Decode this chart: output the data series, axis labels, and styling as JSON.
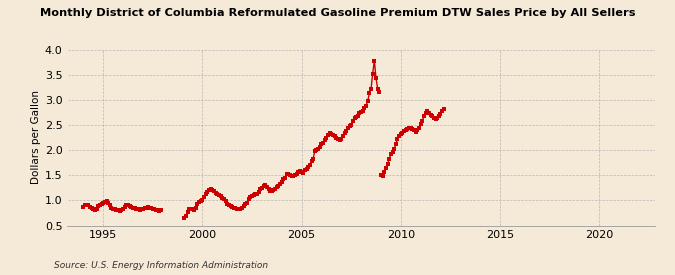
{
  "title": "Monthly District of Columbia Reformulated Gasoline Premium DTW Sales Price by All Sellers",
  "ylabel": "Dollars per Gallon",
  "source": "Source: U.S. Energy Information Administration",
  "background_color": "#f5ead8",
  "plot_background_color": "#f5ead8",
  "marker_color": "#cc0000",
  "line_color": "#cc0000",
  "marker_size": 2.5,
  "line_width": 1.0,
  "xlim_start": 1993.2,
  "xlim_end": 2022.8,
  "ylim_bottom": 0.5,
  "ylim_top": 4.0,
  "yticks": [
    0.5,
    1.0,
    1.5,
    2.0,
    2.5,
    3.0,
    3.5,
    4.0
  ],
  "xticks": [
    1995,
    2000,
    2005,
    2010,
    2015,
    2020
  ],
  "segments": [
    [
      [
        1994.0,
        0.87
      ],
      [
        1994.083,
        0.9
      ],
      [
        1994.167,
        0.91
      ],
      [
        1994.25,
        0.91
      ],
      [
        1994.333,
        0.87
      ],
      [
        1994.417,
        0.85
      ],
      [
        1994.5,
        0.82
      ],
      [
        1994.583,
        0.8
      ],
      [
        1994.667,
        0.83
      ],
      [
        1994.75,
        0.88
      ],
      [
        1994.833,
        0.9
      ],
      [
        1994.917,
        0.92
      ],
      [
        1995.0,
        0.94
      ],
      [
        1995.083,
        0.97
      ],
      [
        1995.167,
        0.98
      ],
      [
        1995.25,
        0.95
      ],
      [
        1995.333,
        0.9
      ],
      [
        1995.417,
        0.85
      ],
      [
        1995.5,
        0.82
      ],
      [
        1995.583,
        0.82
      ],
      [
        1995.667,
        0.8
      ],
      [
        1995.75,
        0.8
      ],
      [
        1995.833,
        0.78
      ],
      [
        1995.917,
        0.8
      ],
      [
        1996.0,
        0.83
      ],
      [
        1996.083,
        0.87
      ],
      [
        1996.167,
        0.9
      ],
      [
        1996.25,
        0.9
      ],
      [
        1996.333,
        0.88
      ],
      [
        1996.417,
        0.87
      ],
      [
        1996.5,
        0.85
      ],
      [
        1996.583,
        0.84
      ],
      [
        1996.667,
        0.83
      ],
      [
        1996.75,
        0.82
      ],
      [
        1996.833,
        0.81
      ],
      [
        1996.917,
        0.82
      ],
      [
        1997.0,
        0.83
      ],
      [
        1997.083,
        0.85
      ],
      [
        1997.167,
        0.85
      ],
      [
        1997.25,
        0.86
      ],
      [
        1997.333,
        0.85
      ],
      [
        1997.417,
        0.84
      ],
      [
        1997.5,
        0.83
      ],
      [
        1997.583,
        0.82
      ],
      [
        1997.667,
        0.81
      ],
      [
        1997.75,
        0.8
      ],
      [
        1997.833,
        0.79
      ],
      [
        1997.917,
        0.8
      ]
    ],
    [
      [
        1999.083,
        0.65
      ],
      [
        1999.167,
        0.68
      ],
      [
        1999.25,
        0.77
      ],
      [
        1999.333,
        0.82
      ],
      [
        1999.417,
        0.83
      ],
      [
        1999.5,
        0.83
      ],
      [
        1999.583,
        0.81
      ],
      [
        1999.667,
        0.85
      ],
      [
        1999.75,
        0.92
      ],
      [
        1999.833,
        0.96
      ],
      [
        1999.917,
        0.99
      ],
      [
        2000.0,
        1.01
      ],
      [
        2000.083,
        1.07
      ],
      [
        2000.167,
        1.12
      ],
      [
        2000.25,
        1.16
      ],
      [
        2000.333,
        1.2
      ],
      [
        2000.417,
        1.23
      ],
      [
        2000.5,
        1.2
      ],
      [
        2000.583,
        1.18
      ],
      [
        2000.667,
        1.15
      ],
      [
        2000.75,
        1.12
      ],
      [
        2000.833,
        1.1
      ],
      [
        2000.917,
        1.08
      ],
      [
        2001.0,
        1.05
      ],
      [
        2001.083,
        1.02
      ],
      [
        2001.167,
        0.98
      ],
      [
        2001.25,
        0.92
      ],
      [
        2001.333,
        0.9
      ],
      [
        2001.417,
        0.88
      ],
      [
        2001.5,
        0.86
      ],
      [
        2001.583,
        0.85
      ],
      [
        2001.667,
        0.84
      ],
      [
        2001.75,
        0.83
      ],
      [
        2001.833,
        0.82
      ],
      [
        2001.917,
        0.82
      ],
      [
        2002.0,
        0.85
      ],
      [
        2002.083,
        0.88
      ],
      [
        2002.167,
        0.92
      ],
      [
        2002.25,
        0.95
      ],
      [
        2002.333,
        1.02
      ],
      [
        2002.417,
        1.06
      ],
      [
        2002.5,
        1.09
      ],
      [
        2002.583,
        1.11
      ],
      [
        2002.667,
        1.13
      ],
      [
        2002.75,
        1.13
      ],
      [
        2002.833,
        1.16
      ],
      [
        2002.917,
        1.22
      ],
      [
        2003.0,
        1.25
      ],
      [
        2003.083,
        1.28
      ],
      [
        2003.167,
        1.3
      ],
      [
        2003.25,
        1.26
      ],
      [
        2003.333,
        1.22
      ],
      [
        2003.417,
        1.18
      ],
      [
        2003.5,
        1.18
      ],
      [
        2003.583,
        1.2
      ],
      [
        2003.667,
        1.23
      ],
      [
        2003.75,
        1.26
      ],
      [
        2003.833,
        1.29
      ],
      [
        2003.917,
        1.32
      ],
      [
        2004.0,
        1.37
      ],
      [
        2004.083,
        1.42
      ],
      [
        2004.167,
        1.44
      ],
      [
        2004.25,
        1.52
      ],
      [
        2004.333,
        1.53
      ],
      [
        2004.417,
        1.51
      ],
      [
        2004.5,
        1.49
      ],
      [
        2004.583,
        1.49
      ],
      [
        2004.667,
        1.51
      ],
      [
        2004.75,
        1.53
      ],
      [
        2004.833,
        1.56
      ],
      [
        2004.917,
        1.59
      ],
      [
        2005.0,
        1.57
      ],
      [
        2005.083,
        1.54
      ],
      [
        2005.167,
        1.6
      ],
      [
        2005.25,
        1.62
      ],
      [
        2005.333,
        1.67
      ],
      [
        2005.417,
        1.7
      ],
      [
        2005.5,
        1.78
      ],
      [
        2005.583,
        1.83
      ],
      [
        2005.667,
        1.98
      ],
      [
        2005.75,
        2.0
      ],
      [
        2005.833,
        2.02
      ],
      [
        2005.917,
        2.07
      ],
      [
        2006.0,
        2.12
      ],
      [
        2006.083,
        2.15
      ],
      [
        2006.167,
        2.2
      ],
      [
        2006.25,
        2.24
      ],
      [
        2006.333,
        2.3
      ],
      [
        2006.417,
        2.34
      ],
      [
        2006.5,
        2.32
      ],
      [
        2006.583,
        2.3
      ],
      [
        2006.667,
        2.27
      ],
      [
        2006.75,
        2.24
      ],
      [
        2006.833,
        2.22
      ],
      [
        2006.917,
        2.2
      ],
      [
        2007.0,
        2.22
      ],
      [
        2007.083,
        2.28
      ],
      [
        2007.167,
        2.33
      ],
      [
        2007.25,
        2.38
      ],
      [
        2007.333,
        2.43
      ],
      [
        2007.417,
        2.48
      ],
      [
        2007.5,
        2.5
      ],
      [
        2007.583,
        2.58
      ],
      [
        2007.667,
        2.63
      ],
      [
        2007.75,
        2.65
      ],
      [
        2007.833,
        2.68
      ],
      [
        2007.917,
        2.73
      ],
      [
        2008.0,
        2.75
      ],
      [
        2008.083,
        2.78
      ],
      [
        2008.167,
        2.83
      ],
      [
        2008.25,
        2.88
      ],
      [
        2008.333,
        2.98
      ],
      [
        2008.417,
        3.13
      ],
      [
        2008.5,
        3.22
      ],
      [
        2008.583,
        3.52
      ],
      [
        2008.667,
        3.78
      ],
      [
        2008.75,
        3.43
      ],
      [
        2008.833,
        3.22
      ],
      [
        2008.917,
        3.15
      ]
    ],
    [
      [
        2009.0,
        1.5
      ],
      [
        2009.083,
        1.48
      ],
      [
        2009.167,
        1.56
      ],
      [
        2009.25,
        1.64
      ],
      [
        2009.333,
        1.72
      ],
      [
        2009.417,
        1.82
      ],
      [
        2009.5,
        1.92
      ],
      [
        2009.583,
        1.97
      ],
      [
        2009.667,
        2.02
      ],
      [
        2009.75,
        2.12
      ],
      [
        2009.833,
        2.22
      ],
      [
        2009.917,
        2.27
      ],
      [
        2010.0,
        2.32
      ],
      [
        2010.083,
        2.34
      ],
      [
        2010.167,
        2.37
      ],
      [
        2010.25,
        2.4
      ],
      [
        2010.333,
        2.42
      ],
      [
        2010.417,
        2.44
      ],
      [
        2010.5,
        2.43
      ],
      [
        2010.583,
        2.41
      ],
      [
        2010.667,
        2.39
      ],
      [
        2010.75,
        2.36
      ],
      [
        2010.833,
        2.39
      ],
      [
        2010.917,
        2.43
      ],
      [
        2011.0,
        2.52
      ],
      [
        2011.083,
        2.58
      ],
      [
        2011.167,
        2.68
      ],
      [
        2011.25,
        2.74
      ],
      [
        2011.333,
        2.77
      ],
      [
        2011.417,
        2.74
      ],
      [
        2011.5,
        2.7
      ],
      [
        2011.583,
        2.67
      ],
      [
        2011.667,
        2.64
      ],
      [
        2011.75,
        2.62
      ],
      [
        2011.833,
        2.64
      ],
      [
        2011.917,
        2.67
      ],
      [
        2012.0,
        2.72
      ],
      [
        2012.083,
        2.77
      ],
      [
        2012.167,
        2.82
      ]
    ]
  ]
}
